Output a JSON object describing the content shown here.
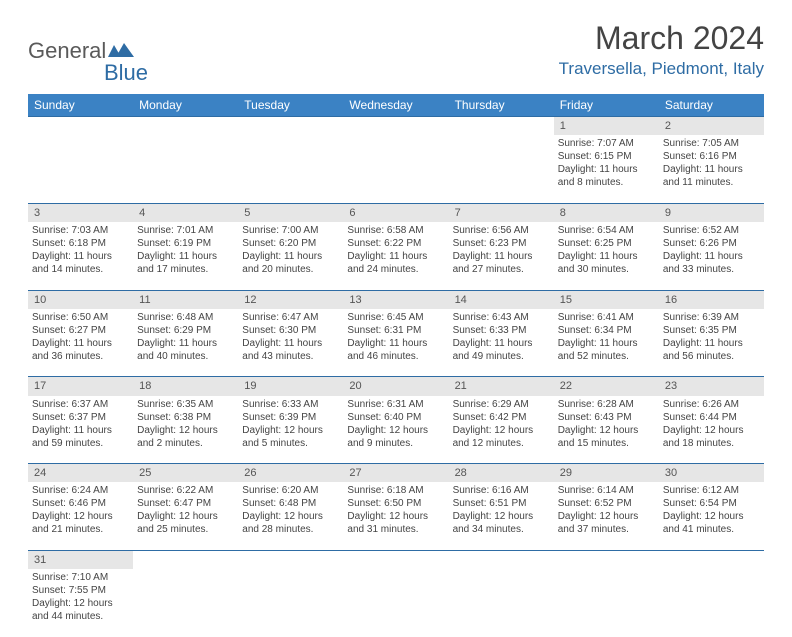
{
  "logo": {
    "general": "General",
    "blue": "Blue"
  },
  "title": "March 2024",
  "location": "Traversella, Piedmont, Italy",
  "colors": {
    "header_bg": "#3b82c4",
    "header_text": "#ffffff",
    "daynum_bg": "#e6e6e6",
    "border": "#2e6ca4",
    "logo_gray": "#5a5a5a",
    "logo_blue": "#2e6ca4",
    "text": "#444444"
  },
  "weekdays": [
    "Sunday",
    "Monday",
    "Tuesday",
    "Wednesday",
    "Thursday",
    "Friday",
    "Saturday"
  ],
  "weeks": [
    [
      {},
      {},
      {},
      {},
      {},
      {
        "n": "1",
        "sr": "Sunrise: 7:07 AM",
        "ss": "Sunset: 6:15 PM",
        "d1": "Daylight: 11 hours",
        "d2": "and 8 minutes."
      },
      {
        "n": "2",
        "sr": "Sunrise: 7:05 AM",
        "ss": "Sunset: 6:16 PM",
        "d1": "Daylight: 11 hours",
        "d2": "and 11 minutes."
      }
    ],
    [
      {
        "n": "3",
        "sr": "Sunrise: 7:03 AM",
        "ss": "Sunset: 6:18 PM",
        "d1": "Daylight: 11 hours",
        "d2": "and 14 minutes."
      },
      {
        "n": "4",
        "sr": "Sunrise: 7:01 AM",
        "ss": "Sunset: 6:19 PM",
        "d1": "Daylight: 11 hours",
        "d2": "and 17 minutes."
      },
      {
        "n": "5",
        "sr": "Sunrise: 7:00 AM",
        "ss": "Sunset: 6:20 PM",
        "d1": "Daylight: 11 hours",
        "d2": "and 20 minutes."
      },
      {
        "n": "6",
        "sr": "Sunrise: 6:58 AM",
        "ss": "Sunset: 6:22 PM",
        "d1": "Daylight: 11 hours",
        "d2": "and 24 minutes."
      },
      {
        "n": "7",
        "sr": "Sunrise: 6:56 AM",
        "ss": "Sunset: 6:23 PM",
        "d1": "Daylight: 11 hours",
        "d2": "and 27 minutes."
      },
      {
        "n": "8",
        "sr": "Sunrise: 6:54 AM",
        "ss": "Sunset: 6:25 PM",
        "d1": "Daylight: 11 hours",
        "d2": "and 30 minutes."
      },
      {
        "n": "9",
        "sr": "Sunrise: 6:52 AM",
        "ss": "Sunset: 6:26 PM",
        "d1": "Daylight: 11 hours",
        "d2": "and 33 minutes."
      }
    ],
    [
      {
        "n": "10",
        "sr": "Sunrise: 6:50 AM",
        "ss": "Sunset: 6:27 PM",
        "d1": "Daylight: 11 hours",
        "d2": "and 36 minutes."
      },
      {
        "n": "11",
        "sr": "Sunrise: 6:48 AM",
        "ss": "Sunset: 6:29 PM",
        "d1": "Daylight: 11 hours",
        "d2": "and 40 minutes."
      },
      {
        "n": "12",
        "sr": "Sunrise: 6:47 AM",
        "ss": "Sunset: 6:30 PM",
        "d1": "Daylight: 11 hours",
        "d2": "and 43 minutes."
      },
      {
        "n": "13",
        "sr": "Sunrise: 6:45 AM",
        "ss": "Sunset: 6:31 PM",
        "d1": "Daylight: 11 hours",
        "d2": "and 46 minutes."
      },
      {
        "n": "14",
        "sr": "Sunrise: 6:43 AM",
        "ss": "Sunset: 6:33 PM",
        "d1": "Daylight: 11 hours",
        "d2": "and 49 minutes."
      },
      {
        "n": "15",
        "sr": "Sunrise: 6:41 AM",
        "ss": "Sunset: 6:34 PM",
        "d1": "Daylight: 11 hours",
        "d2": "and 52 minutes."
      },
      {
        "n": "16",
        "sr": "Sunrise: 6:39 AM",
        "ss": "Sunset: 6:35 PM",
        "d1": "Daylight: 11 hours",
        "d2": "and 56 minutes."
      }
    ],
    [
      {
        "n": "17",
        "sr": "Sunrise: 6:37 AM",
        "ss": "Sunset: 6:37 PM",
        "d1": "Daylight: 11 hours",
        "d2": "and 59 minutes."
      },
      {
        "n": "18",
        "sr": "Sunrise: 6:35 AM",
        "ss": "Sunset: 6:38 PM",
        "d1": "Daylight: 12 hours",
        "d2": "and 2 minutes."
      },
      {
        "n": "19",
        "sr": "Sunrise: 6:33 AM",
        "ss": "Sunset: 6:39 PM",
        "d1": "Daylight: 12 hours",
        "d2": "and 5 minutes."
      },
      {
        "n": "20",
        "sr": "Sunrise: 6:31 AM",
        "ss": "Sunset: 6:40 PM",
        "d1": "Daylight: 12 hours",
        "d2": "and 9 minutes."
      },
      {
        "n": "21",
        "sr": "Sunrise: 6:29 AM",
        "ss": "Sunset: 6:42 PM",
        "d1": "Daylight: 12 hours",
        "d2": "and 12 minutes."
      },
      {
        "n": "22",
        "sr": "Sunrise: 6:28 AM",
        "ss": "Sunset: 6:43 PM",
        "d1": "Daylight: 12 hours",
        "d2": "and 15 minutes."
      },
      {
        "n": "23",
        "sr": "Sunrise: 6:26 AM",
        "ss": "Sunset: 6:44 PM",
        "d1": "Daylight: 12 hours",
        "d2": "and 18 minutes."
      }
    ],
    [
      {
        "n": "24",
        "sr": "Sunrise: 6:24 AM",
        "ss": "Sunset: 6:46 PM",
        "d1": "Daylight: 12 hours",
        "d2": "and 21 minutes."
      },
      {
        "n": "25",
        "sr": "Sunrise: 6:22 AM",
        "ss": "Sunset: 6:47 PM",
        "d1": "Daylight: 12 hours",
        "d2": "and 25 minutes."
      },
      {
        "n": "26",
        "sr": "Sunrise: 6:20 AM",
        "ss": "Sunset: 6:48 PM",
        "d1": "Daylight: 12 hours",
        "d2": "and 28 minutes."
      },
      {
        "n": "27",
        "sr": "Sunrise: 6:18 AM",
        "ss": "Sunset: 6:50 PM",
        "d1": "Daylight: 12 hours",
        "d2": "and 31 minutes."
      },
      {
        "n": "28",
        "sr": "Sunrise: 6:16 AM",
        "ss": "Sunset: 6:51 PM",
        "d1": "Daylight: 12 hours",
        "d2": "and 34 minutes."
      },
      {
        "n": "29",
        "sr": "Sunrise: 6:14 AM",
        "ss": "Sunset: 6:52 PM",
        "d1": "Daylight: 12 hours",
        "d2": "and 37 minutes."
      },
      {
        "n": "30",
        "sr": "Sunrise: 6:12 AM",
        "ss": "Sunset: 6:54 PM",
        "d1": "Daylight: 12 hours",
        "d2": "and 41 minutes."
      }
    ],
    [
      {
        "n": "31",
        "sr": "Sunrise: 7:10 AM",
        "ss": "Sunset: 7:55 PM",
        "d1": "Daylight: 12 hours",
        "d2": "and 44 minutes."
      },
      {},
      {},
      {},
      {},
      {},
      {}
    ]
  ]
}
